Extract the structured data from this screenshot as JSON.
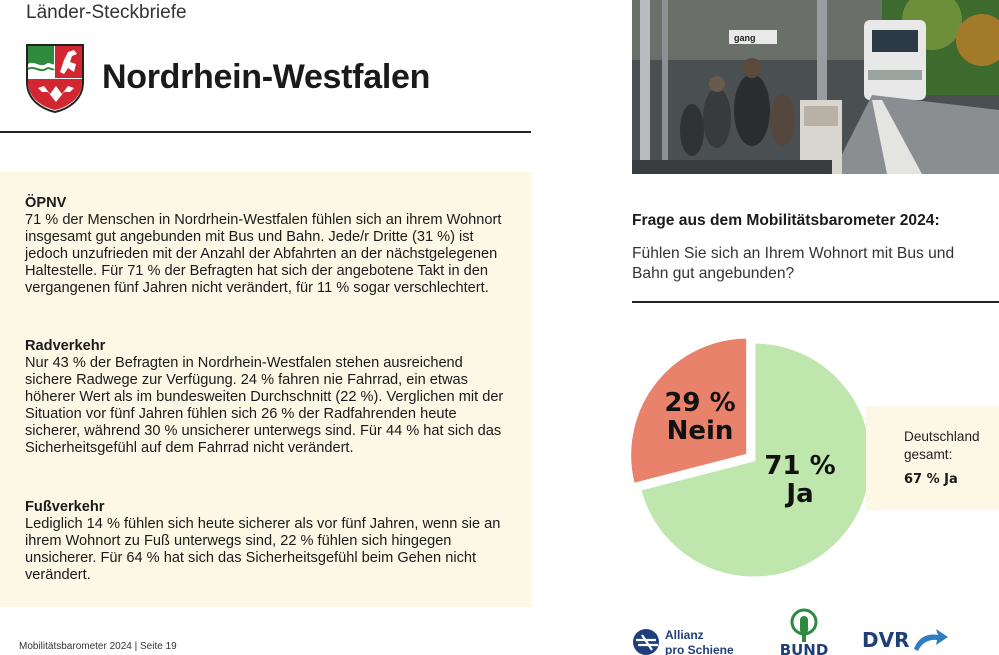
{
  "header": {
    "kicker": "Länder-Steckbriefe",
    "title": "Nordrhein-Westfalen",
    "crest_icon": "nrw-coat-of-arms-icon"
  },
  "sections": [
    {
      "heading": "ÖPNV",
      "body": "71 % der Menschen in Nordrhein-Westfalen fühlen sich an ihrem Wohnort insgesamt gut angebunden mit Bus und Bahn. Jede/r Dritte (31 %) ist jedoch unzufrieden mit der Anzahl der Abfahrten an der nächstgelegenen Haltestelle. Für 71 % der Befragten hat sich der angebotene Takt in den vergangenen fünf Jahren nicht verändert, für 11 % sogar verschlechtert."
    },
    {
      "heading": "Radverkehr",
      "body": "Nur 43 % der Befragten in Nordrhein-Westfalen stehen ausreichend sichere Radwege zur Verfügung. 24 % fahren nie Fahrrad, ein etwas höherer Wert als im bundesweiten Durchschnitt (22 %). Verglichen mit der Situation vor fünf Jahren fühlen sich 26 % der Radfahrenden heute sicherer, während 30 % unsicherer unterwegs sind. Für 44 % hat sich das Sicherheitsgefühl auf dem Fahrrad nicht verändert."
    },
    {
      "heading": "Fußverkehr",
      "body": "Lediglich 14 % fühlen sich heute sicherer als vor fünf Jahren, wenn sie an ihrem Wohnort zu Fuß unterwegs sind, 22 % fühlen sich hingegen unsicherer. Für 64 % hat sich das Sicherheitsgefühl beim Gehen nicht verändert."
    }
  ],
  "footer": "Mobilitätsbarometer 2024 | Seite 19",
  "question": {
    "heading": "Frage aus dem Mobilitätsbarometer 2024:",
    "text": "Fühlen Sie sich an Ihrem Wohnort mit Bus und Bahn gut angebunden?"
  },
  "chart_data": {
    "type": "pie",
    "slices": [
      {
        "label": "Ja",
        "value": 71,
        "display": "71 %",
        "color": "#bfe6ad"
      },
      {
        "label": "Nein",
        "value": 29,
        "display": "29 %",
        "color": "#e9826a"
      }
    ]
  },
  "comparison": {
    "label": "Deutschland gesamt:",
    "value": "67 % Ja"
  },
  "logos": {
    "allianz_line1": "Allianz",
    "allianz_line2": "pro Schiene",
    "bund": "BUND",
    "dvr": "DVR"
  },
  "photo_sign_text": "gang"
}
